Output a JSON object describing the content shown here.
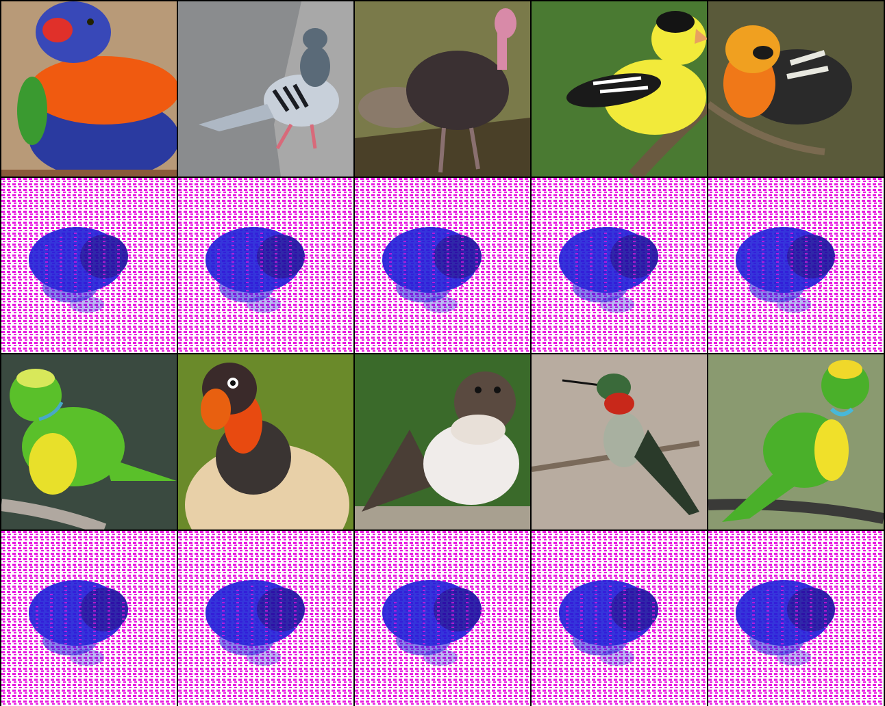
{
  "grid": {
    "columns": 5,
    "rows": 4,
    "background_color": "#000000"
  },
  "photos": [
    {
      "subject": "rainbow-lorikeet",
      "colors": {
        "bg": "#b89a78",
        "head": "#3848b8",
        "breast": "#f05a10",
        "belly": "#2a3aa0",
        "wing": "#3a9a30",
        "beak": "#e0302a"
      }
    },
    {
      "subject": "rock-pigeon",
      "colors": {
        "bg": "#8a8c8e",
        "head": "#5a6a78",
        "body": "#aeb8c4",
        "wing": "#c8d0da",
        "bar": "#1a1c22",
        "feet": "#d86a7a"
      }
    },
    {
      "subject": "wild-turkey",
      "colors": {
        "bg": "#7a7a4a",
        "head": "#d88aa8",
        "body": "#3a3032",
        "tail": "#8a7a6a",
        "legs": "#8a7070"
      }
    },
    {
      "subject": "american-goldfinch",
      "colors": {
        "bg": "#4a7a32",
        "body": "#f2ea3a",
        "cap": "#141414",
        "wing": "#1a1a1a",
        "bar": "#ffffff",
        "beak": "#e8a060",
        "branch": "#6a5a40"
      }
    },
    {
      "subject": "blackburnian-warbler",
      "colors": {
        "bg": "#5a5a3a",
        "throat": "#f07818",
        "face": "#f0a020",
        "head": "#1a1a1a",
        "wing": "#2a2a2a",
        "bar": "#e8e8e0",
        "branch": "#7a6a50"
      }
    },
    {
      "subject": "golden-browed-chlorophonia",
      "colors": {
        "bg": "#3a4a40",
        "body": "#5ac02a",
        "crown": "#d8e85a",
        "collar": "#48a8c8",
        "breast": "#e8e02a",
        "branch": "#b0a8a0"
      }
    },
    {
      "subject": "king-vulture",
      "colors": {
        "bg": "#6a8a2a",
        "head": "#e84a10",
        "face": "#3a2a2a",
        "ruff": "#3a3432",
        "body": "#e8d0a8",
        "beak": "#e86010"
      }
    },
    {
      "subject": "sand-martin",
      "colors": {
        "bg": "#3a6a2a",
        "head": "#5a4a40",
        "throat": "#e8e0d8",
        "wing": "#4a3e36",
        "breast": "#f0ecea",
        "perch": "#a8a090"
      }
    },
    {
      "subject": "ruby-throated-hummingbird",
      "colors": {
        "bg": "#b8aca0",
        "head": "#3a6a3a",
        "throat": "#c8281a",
        "body": "#a8b0a0",
        "wing": "#2a3a2a",
        "branch": "#7a6a5a"
      }
    },
    {
      "subject": "golden-browed-chlorophonia-on-wire",
      "colors": {
        "bg": "#8a9a70",
        "body": "#4ab02a",
        "crown": "#f0d82a",
        "collar": "#48b8d8",
        "breast": "#f0e02a",
        "wire": "#3a3a38"
      }
    }
  ],
  "patterns": {
    "count": 10,
    "colors": {
      "base": "#ffffff",
      "grid": "#e818e0",
      "blob": "#2020d8",
      "blob_dark": "#1a10a0"
    }
  }
}
